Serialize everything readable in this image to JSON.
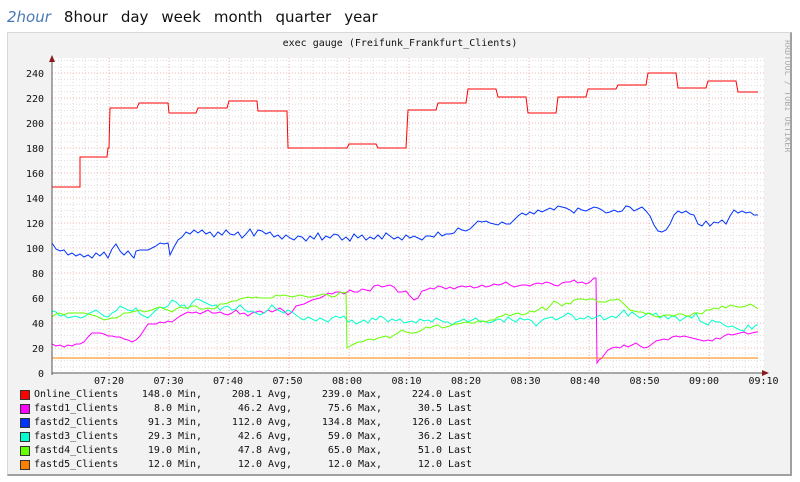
{
  "tabs": [
    {
      "label": "2hour",
      "active": true
    },
    {
      "label": "8hour",
      "active": false
    },
    {
      "label": "day",
      "active": false
    },
    {
      "label": "week",
      "active": false
    },
    {
      "label": "month",
      "active": false
    },
    {
      "label": "quarter",
      "active": false
    },
    {
      "label": "year",
      "active": false
    }
  ],
  "graph": {
    "title": "exec gauge (Freifunk_Frankfurt_Clients)",
    "watermark": "RRDTOOL / TOBI OETIKER",
    "y_ticks": [
      "0",
      "20",
      "40",
      "60",
      "80",
      "100",
      "120",
      "140",
      "160",
      "180",
      "200",
      "220",
      "240"
    ],
    "x_ticks": [
      "07:20",
      "07:30",
      "07:40",
      "07:50",
      "08:00",
      "08:10",
      "08:20",
      "08:30",
      "08:40",
      "08:50",
      "09:00",
      "09:10"
    ]
  },
  "legend": [
    {
      "name": "Online_Clients",
      "color": "#ff0000",
      "min": "148.0",
      "avg": "208.1",
      "max": "239.0",
      "last": "224.0"
    },
    {
      "name": "fastd1_Clients",
      "color": "#ff00ff",
      "min": "8.0",
      "avg": "46.2",
      "max": "75.6",
      "last": "30.5"
    },
    {
      "name": "fastd2_Clients",
      "color": "#0033ff",
      "min": "91.3",
      "avg": "112.0",
      "max": "134.8",
      "last": "126.0"
    },
    {
      "name": "fastd3_Clients",
      "color": "#00ffcc",
      "min": "29.3",
      "avg": "42.6",
      "max": "59.0",
      "last": "36.2"
    },
    {
      "name": "fastd4_Clients",
      "color": "#66ff00",
      "min": "19.0",
      "avg": "47.8",
      "max": "65.0",
      "last": "51.0"
    },
    {
      "name": "fastd5_Clients",
      "color": "#ff8000",
      "min": "12.0",
      "avg": "12.0",
      "max": "12.0",
      "last": "12.0"
    }
  ],
  "legend_labels": {
    "min": "Min,",
    "avg": "Avg,",
    "max": "Max,",
    "last": "Last"
  },
  "chart_data": {
    "type": "line",
    "title": "exec gauge (Freifunk_Frankfurt_Clients)",
    "xlabel": "",
    "ylabel": "",
    "ylim": [
      0,
      250
    ],
    "xlim": [
      "07:10",
      "09:10"
    ],
    "grid": true,
    "legend_position": "bottom",
    "x": [
      "07:11",
      "07:20",
      "07:30",
      "07:40",
      "07:50",
      "08:00",
      "08:10",
      "08:20",
      "08:30",
      "08:40",
      "08:50",
      "09:00",
      "09:08"
    ],
    "series": [
      {
        "name": "Online_Clients",
        "color": "#ff0000",
        "values": [
          148,
          212,
          207,
          216,
          179,
          182,
          209,
          226,
          208,
          226,
          239,
          233,
          224
        ]
      },
      {
        "name": "fastd1_Clients",
        "color": "#ff00ff",
        "values": [
          22,
          31,
          39,
          46,
          50,
          63,
          67,
          70,
          75,
          20,
          30,
          28,
          30
        ]
      },
      {
        "name": "fastd2_Clients",
        "color": "#0033ff",
        "values": [
          102,
          94,
          112,
          110,
          113,
          109,
          106,
          112,
          124,
          128,
          130,
          120,
          126
        ]
      },
      {
        "name": "fastd3_Clients",
        "color": "#00ffcc",
        "values": [
          48,
          46,
          55,
          48,
          42,
          40,
          38,
          40,
          38,
          47,
          45,
          35,
          36
        ]
      },
      {
        "name": "fastd4_Clients",
        "color": "#66ff00",
        "values": [
          45,
          47,
          52,
          58,
          62,
          20,
          33,
          38,
          45,
          62,
          48,
          50,
          51
        ]
      },
      {
        "name": "fastd5_Clients",
        "color": "#ff8000",
        "values": [
          12,
          12,
          12,
          12,
          12,
          12,
          12,
          12,
          12,
          12,
          12,
          12,
          12
        ]
      }
    ]
  }
}
